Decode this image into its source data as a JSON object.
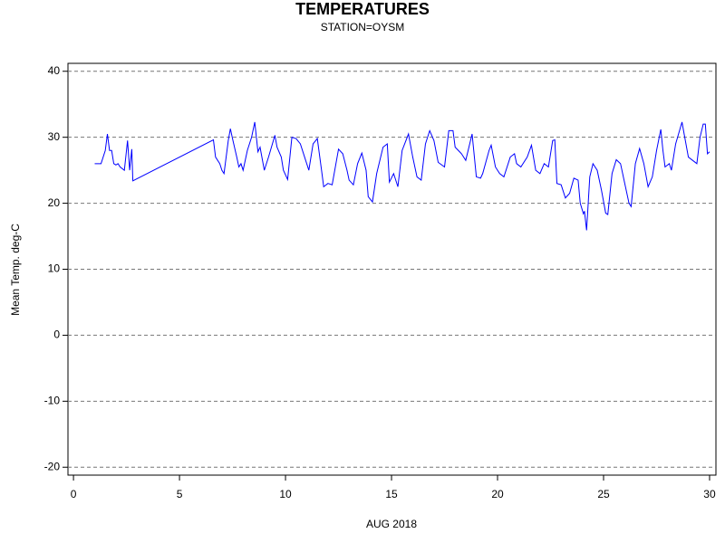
{
  "chart_data": {
    "type": "line",
    "title": "TEMPERATURES",
    "subtitle": "STATION=OYSM",
    "x_label": "AUG 2018",
    "y_label": "Mean Temp. deg-C",
    "xlim": [
      -0.26,
      30.3
    ],
    "ylim": [
      -21.2,
      41.2
    ],
    "xticks": [
      0,
      5,
      10,
      15,
      20,
      25,
      30
    ],
    "yticks": [
      -20,
      -10,
      0,
      10,
      20,
      30,
      40
    ],
    "grid": true,
    "series": [
      {
        "name": "Mean Temp",
        "color": "#0000ff",
        "x": [
          1.0,
          1.3,
          1.5,
          1.6,
          1.7,
          1.8,
          1.9,
          2.0,
          2.1,
          2.2,
          2.4,
          2.5,
          2.55,
          2.65,
          2.75,
          2.8,
          6.6,
          6.7,
          6.9,
          7.0,
          7.1,
          7.3,
          7.4,
          7.5,
          7.7,
          7.8,
          7.9,
          8.0,
          8.2,
          8.4,
          8.55,
          8.7,
          8.8,
          9.0,
          9.2,
          9.5,
          9.6,
          9.8,
          9.9,
          10.1,
          10.3,
          10.5,
          10.7,
          10.9,
          11.1,
          11.3,
          11.5,
          11.7,
          11.8,
          12.0,
          12.2,
          12.5,
          12.7,
          12.9,
          13.0,
          13.2,
          13.4,
          13.6,
          13.8,
          13.9,
          14.1,
          14.3,
          14.6,
          14.8,
          14.9,
          15.1,
          15.3,
          15.5,
          15.8,
          16.0,
          16.2,
          16.4,
          16.6,
          16.8,
          17.0,
          17.2,
          17.5,
          17.7,
          17.9,
          18.0,
          18.3,
          18.5,
          18.8,
          19.0,
          19.2,
          19.3,
          19.6,
          19.7,
          19.9,
          20.1,
          20.3,
          20.6,
          20.8,
          20.9,
          21.1,
          21.4,
          21.6,
          21.8,
          22.0,
          22.2,
          22.4,
          22.6,
          22.7,
          22.8,
          23.0,
          23.2,
          23.4,
          23.6,
          23.8,
          23.9,
          24.05,
          24.1,
          24.2,
          24.35,
          24.5,
          24.7,
          24.9,
          25.1,
          25.2,
          25.4,
          25.6,
          25.8,
          26.0,
          26.2,
          26.3,
          26.5,
          26.7,
          26.9,
          27.1,
          27.3,
          27.5,
          27.7,
          27.8,
          27.9,
          28.1,
          28.2,
          28.4,
          28.7,
          28.8,
          29.0,
          29.2,
          29.4,
          29.55,
          29.7,
          29.8,
          29.9,
          30.0
        ],
        "values": [
          26,
          26,
          28,
          30.5,
          28,
          28,
          26,
          25.8,
          26,
          25.5,
          25,
          28,
          29.5,
          25,
          28.2,
          23.4,
          29.6,
          27,
          26,
          25,
          24.5,
          29.5,
          31.3,
          29.8,
          27,
          25.5,
          26,
          25,
          28,
          30,
          32.3,
          27.8,
          28.5,
          25,
          27,
          30.3,
          28.5,
          27,
          25,
          23.6,
          30,
          29.8,
          29,
          27,
          25,
          29,
          29.8,
          25,
          22.5,
          23,
          22.8,
          28.2,
          27.5,
          25,
          23.5,
          22.8,
          26,
          27.6,
          25,
          21,
          20.2,
          24.5,
          28.5,
          29,
          23.2,
          24.5,
          22.5,
          28,
          30.5,
          27,
          24,
          23.5,
          29,
          31,
          29.5,
          26.2,
          25.5,
          31,
          31,
          28.5,
          27.5,
          26.5,
          30.5,
          24,
          23.8,
          24.5,
          28,
          28.8,
          25.5,
          24.5,
          24,
          27,
          27.5,
          26,
          25.5,
          27,
          28.8,
          25,
          24.5,
          26,
          25.5,
          29.5,
          29.6,
          23,
          22.8,
          20.8,
          21.5,
          23.8,
          23.5,
          20,
          18.4,
          18.8,
          15.9,
          24,
          26,
          25,
          22,
          18.5,
          18.3,
          24.5,
          26.6,
          26,
          23,
          20,
          19.5,
          26,
          28.3,
          26,
          22.5,
          24,
          28,
          31.2,
          28,
          25.5,
          26,
          25,
          29,
          32.3,
          30.5,
          27,
          26.5,
          26,
          30,
          32,
          32,
          27.5,
          27.8
        ]
      }
    ]
  }
}
